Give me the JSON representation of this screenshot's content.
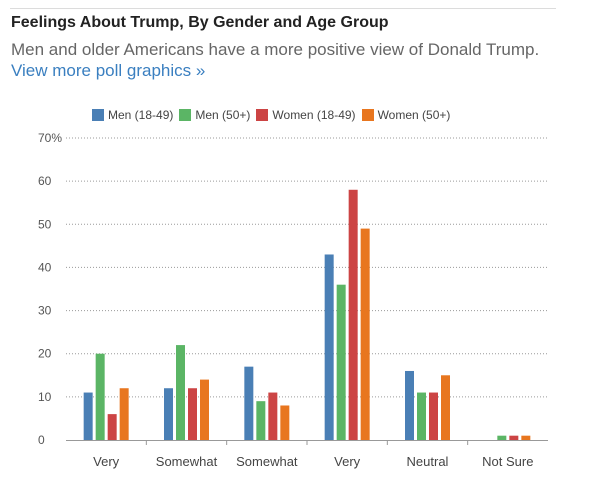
{
  "header": {
    "title": "Feelings About Trump, By Gender and Age Group",
    "subtitle": "Men and older Americans have a more positive view of Donald Trump.",
    "link_label": "View more poll graphics »"
  },
  "chart_data": {
    "type": "bar",
    "categories": [
      "Very",
      "Somewhat",
      "Somewhat",
      "Very",
      "Neutral",
      "Not Sure"
    ],
    "series": [
      {
        "name": "Men (18-49)",
        "color": "#4a7fb5",
        "values": [
          11,
          12,
          17,
          43,
          16,
          0
        ]
      },
      {
        "name": "Men (50+)",
        "color": "#5bb565",
        "values": [
          20,
          22,
          9,
          36,
          11,
          1
        ]
      },
      {
        "name": "Women (18-49)",
        "color": "#cc4444",
        "values": [
          6,
          12,
          11,
          58,
          11,
          1
        ]
      },
      {
        "name": "Women (50+)",
        "color": "#e8761f",
        "values": [
          12,
          14,
          8,
          49,
          15,
          1
        ]
      }
    ],
    "yticks": [
      "0",
      "10",
      "20",
      "30",
      "40",
      "50",
      "60",
      "70%"
    ],
    "ylim": [
      0,
      70
    ],
    "grid": true,
    "legend_position": "top"
  }
}
